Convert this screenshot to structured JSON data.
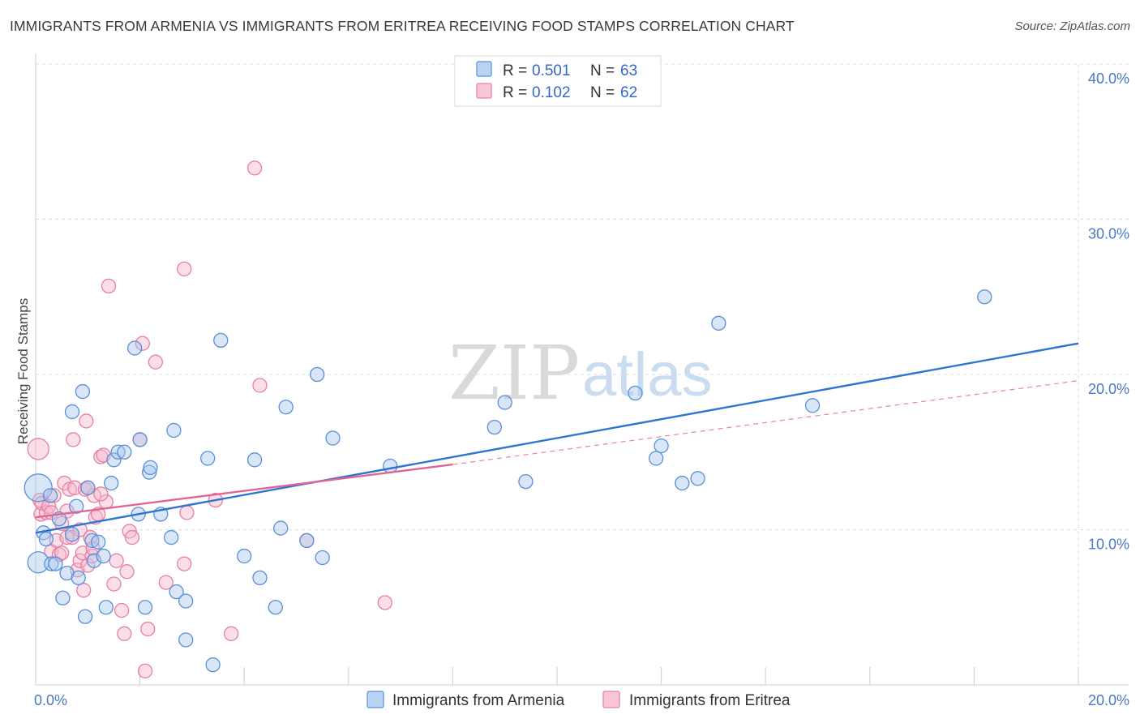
{
  "title": "IMMIGRANTS FROM ARMENIA VS IMMIGRANTS FROM ERITREA RECEIVING FOOD STAMPS CORRELATION CHART",
  "source": "Source: ZipAtlas.com",
  "watermark": {
    "zip": "ZIP",
    "atlas": "atlas"
  },
  "colors": {
    "armenia_fill": "#a9c8f0",
    "armenia_stroke": "#5b8fd6",
    "armenia_line": "#2f74cf",
    "eritrea_fill": "#f6b8cb",
    "eritrea_stroke": "#e77fa2",
    "eritrea_line": "#e06593",
    "tick_text": "#4a78c8",
    "grid": "#dddddd"
  },
  "legend": {
    "r_label": "R =",
    "n_label": "N =",
    "rows": [
      {
        "series": "armenia",
        "r": "0.501",
        "n": "63"
      },
      {
        "series": "eritrea",
        "r": "0.102",
        "n": "62"
      }
    ]
  },
  "chart_data": {
    "type": "scatter",
    "title": "IMMIGRANTS FROM ARMENIA VS IMMIGRANTS FROM ERITREA RECEIVING FOOD STAMPS CORRELATION CHART",
    "xlabel": "",
    "ylabel": "Receiving Food Stamps",
    "xlim": [
      0,
      20
    ],
    "ylim": [
      0,
      40
    ],
    "x_ticks": [
      {
        "value": 0,
        "label": "0.0%"
      },
      {
        "value": 20,
        "label": "20.0%"
      }
    ],
    "y_ticks": [
      {
        "value": 10,
        "label": "10.0%"
      },
      {
        "value": 20,
        "label": "20.0%"
      },
      {
        "value": 30,
        "label": "30.0%"
      },
      {
        "value": 40,
        "label": "40.0%"
      }
    ],
    "grid": true,
    "legend_position": "top-center",
    "series": [
      {
        "name": "Immigrants from Armenia",
        "key": "armenia",
        "r": 0.501,
        "n": 63,
        "trend": {
          "x0": 0,
          "y0": 9.8,
          "x1": 20,
          "y1": 22.0
        },
        "points": [
          [
            0.05,
            12.7,
            3
          ],
          [
            0.05,
            7.9,
            2
          ],
          [
            0.15,
            9.8,
            1
          ],
          [
            0.2,
            9.4,
            1
          ],
          [
            0.28,
            12.2,
            1
          ],
          [
            0.3,
            7.8,
            1
          ],
          [
            0.38,
            7.8,
            1
          ],
          [
            0.45,
            10.7,
            1
          ],
          [
            0.52,
            5.6,
            1
          ],
          [
            0.6,
            7.2,
            1
          ],
          [
            0.7,
            9.7,
            1
          ],
          [
            0.7,
            17.6,
            1
          ],
          [
            0.78,
            11.5,
            1
          ],
          [
            0.82,
            6.9,
            1
          ],
          [
            0.9,
            18.9,
            1
          ],
          [
            0.95,
            4.4,
            1
          ],
          [
            1.0,
            12.7,
            1
          ],
          [
            1.08,
            9.3,
            1
          ],
          [
            1.12,
            8.0,
            1
          ],
          [
            1.2,
            9.2,
            1
          ],
          [
            1.3,
            8.3,
            1
          ],
          [
            1.35,
            5.0,
            1
          ],
          [
            1.45,
            13.0,
            1
          ],
          [
            1.5,
            14.5,
            1
          ],
          [
            1.58,
            15.0,
            1
          ],
          [
            1.7,
            15.0,
            1
          ],
          [
            1.9,
            21.7,
            1
          ],
          [
            1.97,
            11.0,
            1
          ],
          [
            2.0,
            15.8,
            1
          ],
          [
            2.1,
            5.0,
            1
          ],
          [
            2.18,
            13.7,
            1
          ],
          [
            2.2,
            14.0,
            1
          ],
          [
            2.4,
            11.0,
            1
          ],
          [
            2.6,
            9.5,
            1
          ],
          [
            2.65,
            16.4,
            1
          ],
          [
            2.7,
            6.0,
            1
          ],
          [
            2.88,
            5.4,
            1
          ],
          [
            2.88,
            2.9,
            1
          ],
          [
            3.3,
            14.6,
            1
          ],
          [
            3.4,
            1.3,
            1
          ],
          [
            3.55,
            22.2,
            1
          ],
          [
            4.0,
            8.3,
            1
          ],
          [
            4.2,
            14.5,
            1
          ],
          [
            4.3,
            6.9,
            1
          ],
          [
            4.6,
            5.0,
            1
          ],
          [
            4.7,
            10.1,
            1
          ],
          [
            4.8,
            17.9,
            1
          ],
          [
            5.2,
            9.3,
            1
          ],
          [
            5.4,
            20.0,
            1
          ],
          [
            5.5,
            8.2,
            1
          ],
          [
            5.7,
            15.9,
            1
          ],
          [
            6.8,
            14.1,
            1
          ],
          [
            8.8,
            16.6,
            1
          ],
          [
            9.0,
            18.2,
            1
          ],
          [
            9.4,
            13.1,
            1
          ],
          [
            11.5,
            18.8,
            1
          ],
          [
            11.9,
            14.6,
            1
          ],
          [
            12.0,
            15.4,
            1
          ],
          [
            12.4,
            13.0,
            1
          ],
          [
            12.7,
            13.3,
            1
          ],
          [
            13.1,
            23.3,
            1
          ],
          [
            14.9,
            18.0,
            1
          ],
          [
            18.2,
            25.0,
            1
          ]
        ]
      },
      {
        "name": "Immigrants from Eritrea",
        "key": "eritrea",
        "r": 0.102,
        "n": 62,
        "trend": {
          "x0": 0,
          "y0": 10.8,
          "x1": 8.0,
          "y1": 14.2
        },
        "trend_extension": {
          "x0": 8.0,
          "y0": 14.2,
          "x1": 20,
          "y1": 19.6
        },
        "points": [
          [
            0.05,
            15.2,
            2
          ],
          [
            0.08,
            11.9,
            1
          ],
          [
            0.1,
            11.0,
            1
          ],
          [
            0.12,
            11.7,
            1
          ],
          [
            0.2,
            11.1,
            1
          ],
          [
            0.25,
            11.5,
            1
          ],
          [
            0.3,
            8.6,
            1
          ],
          [
            0.35,
            12.2,
            1
          ],
          [
            0.4,
            9.3,
            1
          ],
          [
            0.45,
            8.4,
            1
          ],
          [
            0.5,
            10.4,
            1
          ],
          [
            0.55,
            13.0,
            1
          ],
          [
            0.6,
            11.2,
            1
          ],
          [
            0.65,
            12.6,
            1
          ],
          [
            0.7,
            9.5,
            1
          ],
          [
            0.72,
            15.8,
            1
          ],
          [
            0.75,
            12.7,
            1
          ],
          [
            0.8,
            7.4,
            1
          ],
          [
            0.85,
            8.0,
            1
          ],
          [
            0.9,
            8.5,
            1
          ],
          [
            0.92,
            6.1,
            1
          ],
          [
            0.95,
            12.6,
            1
          ],
          [
            0.97,
            17.0,
            1
          ],
          [
            1.0,
            7.7,
            1
          ],
          [
            1.05,
            9.5,
            1
          ],
          [
            1.08,
            8.3,
            1
          ],
          [
            1.12,
            12.2,
            1
          ],
          [
            1.15,
            10.8,
            1
          ],
          [
            1.2,
            11.0,
            1
          ],
          [
            1.25,
            14.7,
            1
          ],
          [
            1.3,
            14.8,
            1
          ],
          [
            1.35,
            11.8,
            1
          ],
          [
            1.4,
            25.7,
            1
          ],
          [
            1.5,
            6.5,
            1
          ],
          [
            1.55,
            8.0,
            1
          ],
          [
            1.65,
            4.8,
            1
          ],
          [
            1.7,
            3.3,
            1
          ],
          [
            1.75,
            7.3,
            1
          ],
          [
            1.8,
            9.9,
            1
          ],
          [
            1.85,
            9.5,
            1
          ],
          [
            2.0,
            15.8,
            1
          ],
          [
            2.05,
            22.0,
            1
          ],
          [
            2.1,
            0.9,
            1
          ],
          [
            2.15,
            3.6,
            1
          ],
          [
            2.3,
            20.8,
            1
          ],
          [
            2.5,
            6.6,
            1
          ],
          [
            2.85,
            7.8,
            1
          ],
          [
            2.85,
            26.8,
            1
          ],
          [
            2.9,
            11.1,
            1
          ],
          [
            3.45,
            11.9,
            1
          ],
          [
            3.75,
            3.3,
            1
          ],
          [
            4.2,
            33.3,
            1
          ],
          [
            4.3,
            19.3,
            1
          ],
          [
            5.2,
            9.3,
            1
          ],
          [
            6.7,
            5.3,
            1
          ],
          [
            1.0,
            12.7,
            1
          ],
          [
            0.6,
            9.5,
            1
          ],
          [
            0.3,
            11.1,
            1
          ],
          [
            1.25,
            12.3,
            1
          ],
          [
            0.85,
            10.0,
            1
          ],
          [
            0.5,
            8.5,
            1
          ],
          [
            1.1,
            8.8,
            1
          ]
        ]
      }
    ]
  },
  "bottom_legend": [
    {
      "series": "armenia",
      "label": "Immigrants from Armenia"
    },
    {
      "series": "eritrea",
      "label": "Immigrants from Eritrea"
    }
  ]
}
